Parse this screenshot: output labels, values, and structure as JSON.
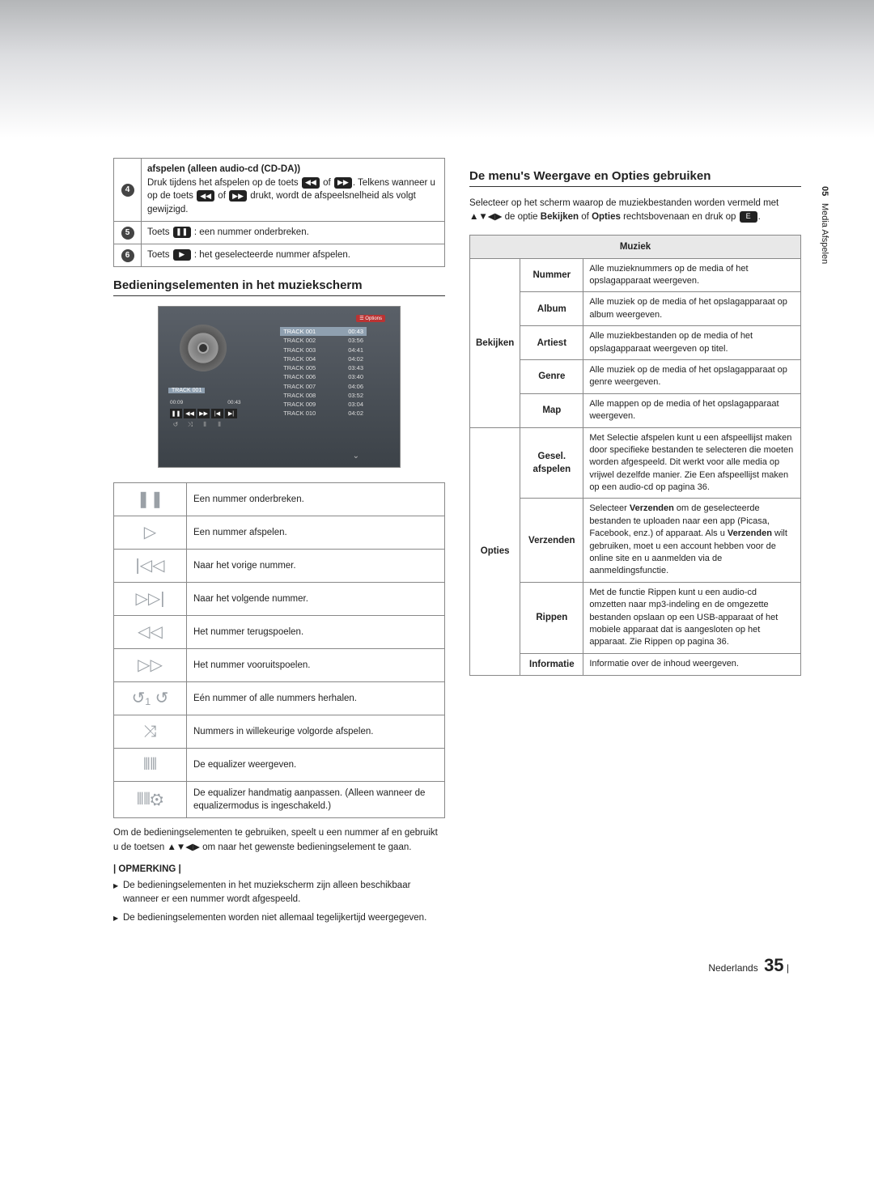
{
  "sidebar": {
    "chapter": "05",
    "section": "Media Afspelen"
  },
  "left": {
    "rows": [
      {
        "num": "4",
        "title": "afspelen (alleen audio-cd (CD-DA))",
        "text_a": "Druk tijdens het afspelen op de toets ",
        "text_b": " of ",
        "text_c": ". Telkens wanneer u op de toets ",
        "text_d": " of ",
        "text_e": " drukt, wordt de afspeelsnelheid als volgt gewijzigd."
      },
      {
        "num": "5",
        "text_a": "Toets ",
        "btn": "❚❚",
        "text_b": " : een nummer onderbreken."
      },
      {
        "num": "6",
        "text_a": "Toets ",
        "btn": "▶",
        "text_b": " : het geselecteerde nummer afspelen."
      }
    ],
    "h2a": "Bedieningselementen in het muziekscherm",
    "screen": {
      "options_btn": "☰ Options",
      "nowplay": "TRACK 001",
      "time_a": "00:09",
      "time_b": "00:43",
      "tracks": [
        [
          "TRACK 001",
          "00:43"
        ],
        [
          "TRACK 002",
          "03:56"
        ],
        [
          "TRACK 003",
          "04:41"
        ],
        [
          "TRACK 004",
          "04:02"
        ],
        [
          "TRACK 005",
          "03:43"
        ],
        [
          "TRACK 006",
          "03:40"
        ],
        [
          "TRACK 007",
          "04:06"
        ],
        [
          "TRACK 008",
          "03:52"
        ],
        [
          "TRACK 009",
          "03:04"
        ],
        [
          "TRACK 010",
          "04:02"
        ]
      ]
    },
    "icon_rows": [
      {
        "icon": "❚❚",
        "text": "Een nummer onderbreken."
      },
      {
        "icon": "▷",
        "text": "Een nummer afspelen."
      },
      {
        "icon": "|◁◁",
        "text": "Naar het vorige nummer."
      },
      {
        "icon": "▷▷|",
        "text": "Naar het volgende nummer."
      },
      {
        "icon": "◁◁",
        "text": "Het nummer terugspoelen."
      },
      {
        "icon": "▷▷",
        "text": "Het nummer vooruitspoelen."
      },
      {
        "icon": "↺₁ ↺",
        "text": "Eén nummer of alle nummers herhalen."
      },
      {
        "icon": "⤨",
        "text": "Nummers in willekeurige volgorde afspelen."
      },
      {
        "icon": "⫴⫴",
        "text": "De equalizer weergeven."
      },
      {
        "icon": "⫴⫴⚙",
        "text": "De equalizer handmatig aanpassen. (Alleen wanneer de equalizermodus is ingeschakeld.)"
      }
    ],
    "para": "Om de bedieningselementen te gebruiken, speelt u een nummer af en gebruikt u de toetsen ▲▼◀▶ om naar het gewenste bedieningselement te gaan.",
    "note_hd": "| OPMERKING |",
    "notes": [
      "De bedieningselementen in het muziekscherm zijn alleen beschikbaar wanneer er een nummer wordt afgespeeld.",
      "De bedieningselementen worden niet allemaal tegelijkertijd weergegeven."
    ]
  },
  "right": {
    "h2": "De menu's Weergave en Opties gebruiken",
    "intro_a": "Selecteer op het scherm waarop de muziekbestanden worden vermeld met ▲▼◀▶ de optie ",
    "intro_b": "Bekijken",
    "intro_c": " of ",
    "intro_d": "Opties",
    "intro_e": " rechtsbovenaan en druk op ",
    "intro_btn": "E",
    "intro_f": ".",
    "table_title": "Muziek",
    "bekijken": {
      "label": "Bekijken",
      "rows": [
        {
          "k": "Nummer",
          "v": "Alle muzieknummers op de media of het opslagapparaat weergeven."
        },
        {
          "k": "Album",
          "v": "Alle muziek op de media of het opslagapparaat op album weergeven."
        },
        {
          "k": "Artiest",
          "v": "Alle muziekbestanden op de media of het opslagapparaat weergeven op titel."
        },
        {
          "k": "Genre",
          "v": "Alle muziek op de media of het opslagapparaat op genre weergeven."
        },
        {
          "k": "Map",
          "v": "Alle mappen op de media of het opslagapparaat weergeven."
        }
      ]
    },
    "opties": {
      "label": "Opties",
      "rows": [
        {
          "k": "Gesel. afspelen",
          "v": "Met Selectie afspelen kunt u een afspeellijst maken door specifieke bestanden te selecteren die moeten worden afgespeeld. Dit werkt voor alle media op vrijwel dezelfde manier. Zie Een afspeellijst maken op een audio-cd op pagina 36."
        },
        {
          "k": "Verzenden",
          "v_a": "Selecteer ",
          "v_b": "Verzenden",
          "v_c": " om de geselecteerde bestanden te uploaden naar een app (Picasa, Facebook, enz.) of apparaat. Als u ",
          "v_d": "Verzenden",
          "v_e": " wilt gebruiken, moet u een account hebben voor de online site en u aanmelden via de aanmeldingsfunctie."
        },
        {
          "k": "Rippen",
          "v": "Met de functie Rippen kunt u een audio-cd omzetten naar mp3-indeling en de omgezette bestanden opslaan op een USB-apparaat of het mobiele apparaat dat is aangesloten op het apparaat. Zie Rippen op pagina 36."
        },
        {
          "k": "Informatie",
          "v": "Informatie over de inhoud weergeven."
        }
      ]
    }
  },
  "footer": {
    "lang": "Nederlands",
    "page": "35",
    "bar": " |"
  }
}
